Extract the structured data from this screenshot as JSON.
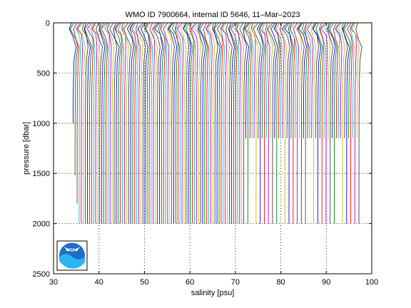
{
  "chart_data": {
    "type": "line",
    "title": "WMO ID 7900664, internal ID 5646, 11–Mar–2023",
    "xlabel": "salinity [psu]",
    "ylabel": "pressure [dbar]",
    "xlim": [
      30,
      100
    ],
    "ylim": [
      0,
      2500
    ],
    "y_reversed": true,
    "x_ticks": [
      "30",
      "40",
      "50",
      "60",
      "70",
      "80",
      "90",
      "100"
    ],
    "y_ticks": [
      "0",
      "500",
      "1000",
      "1500",
      "2000",
      "2500"
    ],
    "grid": "dotted",
    "legend": "none",
    "profiles": {
      "count": 140,
      "first_offset_psu": 34.3,
      "last_offset_psu": 97.2,
      "surface_depth_dbar": 0,
      "deep_depth_dbar": 2000,
      "shallow_depth_dbar": 1150,
      "shallow_from_psu": 72.0
    },
    "series_colors": [
      "#0000ff",
      "#008000",
      "#ff0000",
      "#00bfbf",
      "#bf00bf",
      "#bfbf00",
      "#404040"
    ]
  },
  "logo": {
    "text": "NOAA"
  }
}
